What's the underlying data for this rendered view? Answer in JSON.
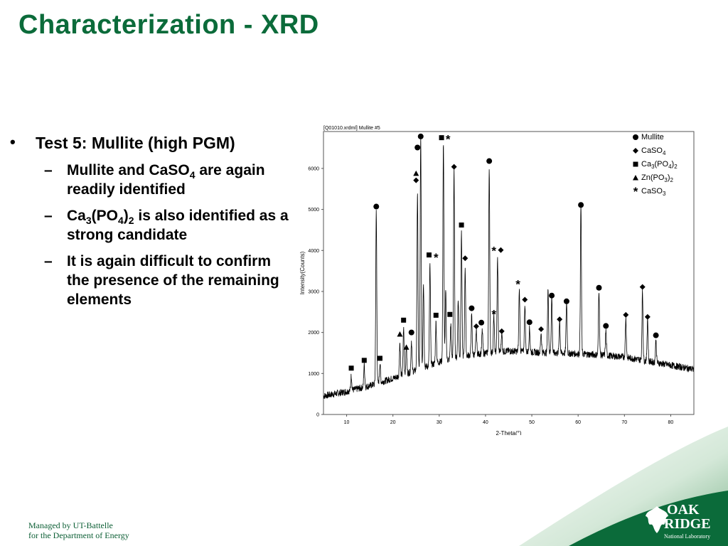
{
  "slide": {
    "title": "Characterization - XRD",
    "bullet_main": "Test 5:  Mullite (high PGM)",
    "sub1_a": "Mullite and CaSO",
    "sub1_b": "4",
    "sub1_c": " are again readily identified",
    "sub2_a": "Ca",
    "sub2_b": "3",
    "sub2_c": "(PO",
    "sub2_d": "4",
    "sub2_e": ")",
    "sub2_f": "2",
    "sub2_g": " is also identified as a strong candidate",
    "sub3": "It is again difficult to confirm the presence of the remaining elements",
    "footer_line1": "Managed by UT-Battelle",
    "footer_line2": "for the Department of Energy",
    "logo_line1": "OAK",
    "logo_line2": "RIDGE",
    "logo_line3": "National Laboratory"
  },
  "colors": {
    "title": "#0b6b3a",
    "swoosh": "#0b6b3a",
    "trace": "#000000"
  },
  "chart_data": {
    "type": "line",
    "title": "[Q01010.xrdml] Mullite #5",
    "xlabel": "2-Theta(°)",
    "ylabel": "Intensity(Counts)",
    "xlim": [
      5,
      85
    ],
    "ylim": [
      0,
      6900
    ],
    "xticks": [
      10,
      20,
      30,
      40,
      50,
      60,
      70,
      80
    ],
    "yticks": [
      0,
      1000,
      2000,
      3000,
      4000,
      5000,
      6000
    ],
    "grid": false,
    "legend_position": "top-right",
    "legend": [
      {
        "marker": "circle",
        "label": "Mullite",
        "label_main": "Mullite",
        "label_sub": "",
        "label_main2": "",
        "label_sub2": ""
      },
      {
        "marker": "diamond",
        "label": "CaSO4",
        "label_main": "CaSO",
        "label_sub": "4",
        "label_main2": "",
        "label_sub2": ""
      },
      {
        "marker": "square",
        "label": "Ca3(PO4)2",
        "label_main": "Ca",
        "label_sub": "3",
        "label_main2": "(PO",
        "label_sub2": "4",
        "label_tail": ")",
        "label_sub3": "2"
      },
      {
        "marker": "triangle",
        "label": "Zn(PO3)2",
        "label_main": "Zn(PO",
        "label_sub": "3",
        "label_main2": ")",
        "label_sub2": "2"
      },
      {
        "marker": "star",
        "label": "CaSO3",
        "label_main": "CaSO",
        "label_sub": "3",
        "label_main2": "",
        "label_sub2": ""
      }
    ],
    "baseline": [
      [
        5,
        450
      ],
      [
        10,
        560
      ],
      [
        15,
        700
      ],
      [
        20,
        880
      ],
      [
        25,
        1080
      ],
      [
        30,
        1280
      ],
      [
        35,
        1420
      ],
      [
        40,
        1500
      ],
      [
        45,
        1550
      ],
      [
        50,
        1520
      ],
      [
        55,
        1500
      ],
      [
        60,
        1480
      ],
      [
        65,
        1450
      ],
      [
        70,
        1400
      ],
      [
        75,
        1300
      ],
      [
        80,
        1200
      ],
      [
        85,
        1100
      ]
    ],
    "peaks": [
      {
        "x": 11.0,
        "y": 950
      },
      {
        "x": 13.8,
        "y": 1200
      },
      {
        "x": 16.4,
        "y": 4950
      },
      {
        "x": 17.2,
        "y": 1250
      },
      {
        "x": 21.5,
        "y": 1750
      },
      {
        "x": 22.3,
        "y": 2100
      },
      {
        "x": 22.9,
        "y": 1650
      },
      {
        "x": 24.0,
        "y": 1800
      },
      {
        "x": 25.3,
        "y": 5400
      },
      {
        "x": 26.0,
        "y": 6750
      },
      {
        "x": 26.6,
        "y": 3200
      },
      {
        "x": 28.0,
        "y": 3650
      },
      {
        "x": 29.3,
        "y": 2250
      },
      {
        "x": 30.9,
        "y": 6650
      },
      {
        "x": 31.4,
        "y": 3000
      },
      {
        "x": 32.5,
        "y": 2200
      },
      {
        "x": 33.2,
        "y": 5950
      },
      {
        "x": 34.1,
        "y": 2800
      },
      {
        "x": 34.8,
        "y": 4450
      },
      {
        "x": 35.6,
        "y": 3600
      },
      {
        "x": 37.0,
        "y": 2400
      },
      {
        "x": 38.0,
        "y": 2050
      },
      {
        "x": 39.3,
        "y": 2050
      },
      {
        "x": 40.8,
        "y": 6050
      },
      {
        "x": 41.8,
        "y": 2400
      },
      {
        "x": 42.6,
        "y": 3800
      },
      {
        "x": 43.5,
        "y": 2000
      },
      {
        "x": 47.3,
        "y": 3050
      },
      {
        "x": 48.5,
        "y": 2700
      },
      {
        "x": 49.5,
        "y": 2100
      },
      {
        "x": 52.0,
        "y": 2000
      },
      {
        "x": 53.5,
        "y": 3050
      },
      {
        "x": 54.3,
        "y": 2850
      },
      {
        "x": 56.0,
        "y": 2300
      },
      {
        "x": 57.5,
        "y": 2750
      },
      {
        "x": 60.6,
        "y": 5100
      },
      {
        "x": 64.5,
        "y": 3050
      },
      {
        "x": 66.0,
        "y": 2050
      },
      {
        "x": 70.3,
        "y": 2350
      },
      {
        "x": 73.9,
        "y": 3000
      },
      {
        "x": 75.0,
        "y": 2350
      },
      {
        "x": 76.8,
        "y": 1800
      }
    ],
    "markers": [
      {
        "x": 11.0,
        "y": 1130,
        "type": "square"
      },
      {
        "x": 13.8,
        "y": 1320,
        "type": "square"
      },
      {
        "x": 16.4,
        "y": 5070,
        "type": "circle"
      },
      {
        "x": 17.2,
        "y": 1370,
        "type": "square"
      },
      {
        "x": 21.5,
        "y": 1960,
        "type": "triangle"
      },
      {
        "x": 22.3,
        "y": 2300,
        "type": "square"
      },
      {
        "x": 22.9,
        "y": 1640,
        "type": "triangle"
      },
      {
        "x": 24.0,
        "y": 2000,
        "type": "circle"
      },
      {
        "x": 25.0,
        "y": 5710,
        "type": "diamond"
      },
      {
        "x": 25.0,
        "y": 5880,
        "type": "triangle"
      },
      {
        "x": 25.3,
        "y": 6510,
        "type": "circle"
      },
      {
        "x": 26.0,
        "y": 6780,
        "type": "circle"
      },
      {
        "x": 27.8,
        "y": 3890,
        "type": "square"
      },
      {
        "x": 29.3,
        "y": 3830,
        "type": "star"
      },
      {
        "x": 29.3,
        "y": 2420,
        "type": "square"
      },
      {
        "x": 30.5,
        "y": 6750,
        "type": "square"
      },
      {
        "x": 31.9,
        "y": 6720,
        "type": "star"
      },
      {
        "x": 32.3,
        "y": 2440,
        "type": "square"
      },
      {
        "x": 33.2,
        "y": 6040,
        "type": "diamond"
      },
      {
        "x": 34.8,
        "y": 4620,
        "type": "square"
      },
      {
        "x": 35.6,
        "y": 3810,
        "type": "diamond"
      },
      {
        "x": 37.0,
        "y": 2590,
        "type": "circle"
      },
      {
        "x": 38.0,
        "y": 2150,
        "type": "diamond"
      },
      {
        "x": 39.1,
        "y": 2240,
        "type": "circle"
      },
      {
        "x": 40.8,
        "y": 6180,
        "type": "circle"
      },
      {
        "x": 41.8,
        "y": 4000,
        "type": "star"
      },
      {
        "x": 43.3,
        "y": 4010,
        "type": "diamond"
      },
      {
        "x": 41.8,
        "y": 2450,
        "type": "star"
      },
      {
        "x": 43.5,
        "y": 2030,
        "type": "diamond"
      },
      {
        "x": 47.0,
        "y": 3180,
        "type": "star"
      },
      {
        "x": 48.5,
        "y": 2800,
        "type": "diamond"
      },
      {
        "x": 49.5,
        "y": 2250,
        "type": "circle"
      },
      {
        "x": 52.0,
        "y": 2080,
        "type": "diamond"
      },
      {
        "x": 54.3,
        "y": 2900,
        "type": "circle"
      },
      {
        "x": 56.0,
        "y": 2320,
        "type": "diamond"
      },
      {
        "x": 57.5,
        "y": 2760,
        "type": "circle"
      },
      {
        "x": 60.6,
        "y": 5110,
        "type": "circle"
      },
      {
        "x": 64.5,
        "y": 3090,
        "type": "circle"
      },
      {
        "x": 66.0,
        "y": 2160,
        "type": "circle"
      },
      {
        "x": 70.3,
        "y": 2430,
        "type": "diamond"
      },
      {
        "x": 73.9,
        "y": 3110,
        "type": "diamond"
      },
      {
        "x": 75.0,
        "y": 2380,
        "type": "diamond"
      },
      {
        "x": 76.8,
        "y": 1930,
        "type": "circle"
      }
    ]
  }
}
